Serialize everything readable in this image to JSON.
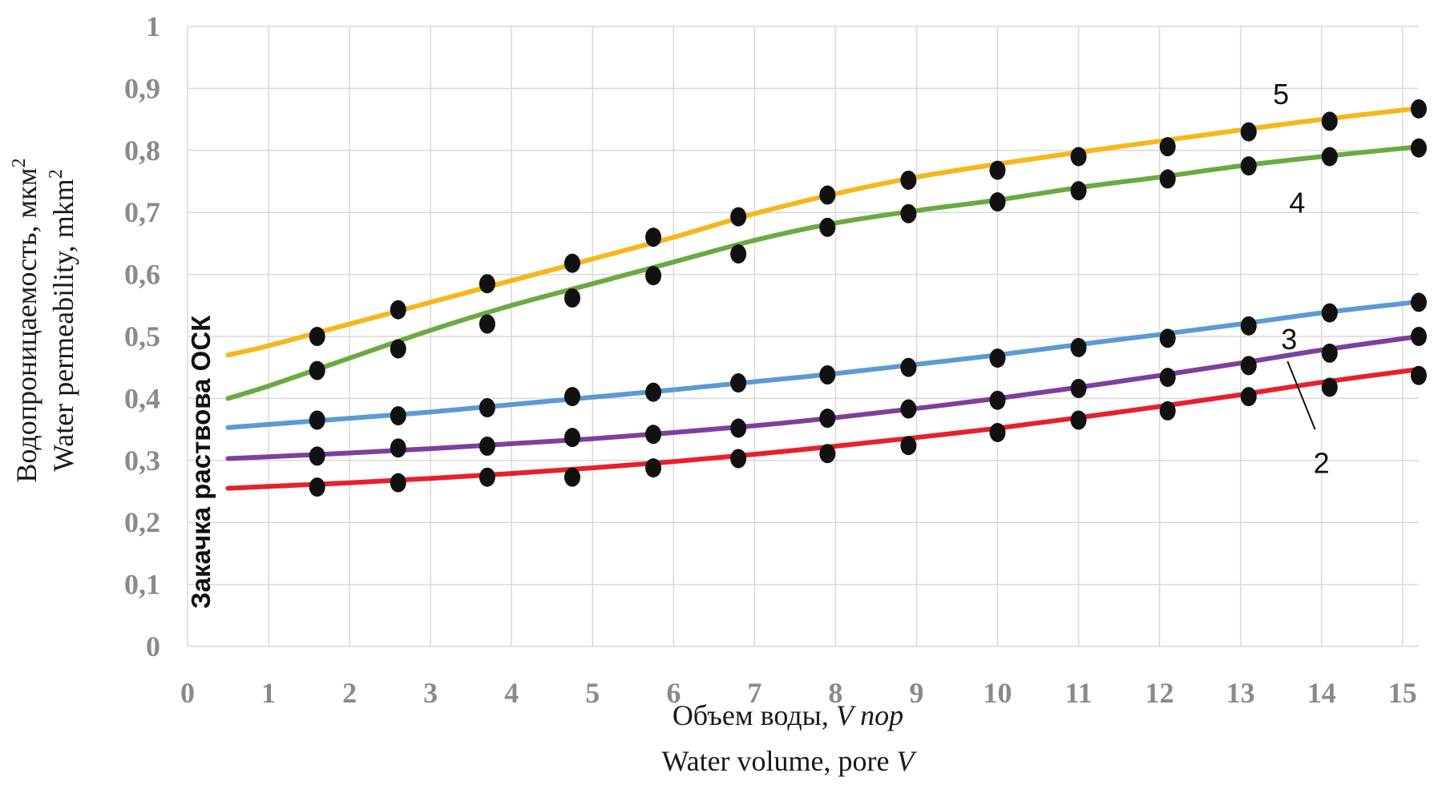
{
  "chart_data": {
    "type": "line",
    "xlabel_lines": [
      "Объем воды, ",
      "Water volume, pore "
    ],
    "xlabel_italic": [
      "V пор",
      "V"
    ],
    "ylabel_lines": [
      "Водопроницаемость, мкм",
      "Water permeability, mkm"
    ],
    "ylabel_superscript": "2",
    "inset_label": "Закачка раствова ОСК",
    "xlim": [
      0,
      15.2
    ],
    "ylim": [
      0,
      1
    ],
    "x_ticks": [
      "0",
      "1",
      "2",
      "3",
      "4",
      "5",
      "6",
      "7",
      "8",
      "9",
      "10",
      "11",
      "12",
      "13",
      "14",
      "15"
    ],
    "y_ticks": [
      "0",
      "0,1",
      "0,2",
      "0,3",
      "0,4",
      "0,5",
      "0,6",
      "0,7",
      "0,8",
      "0,9",
      "1"
    ],
    "grid": true,
    "marker_color": "#111111",
    "series": [
      {
        "name": "5",
        "color": "#f6b61c",
        "label_pos": [
          13.4,
          0.89
        ],
        "line": [
          [
            0.5,
            0.47
          ],
          [
            1,
            0.485
          ],
          [
            2,
            0.52
          ],
          [
            3,
            0.555
          ],
          [
            4,
            0.59
          ],
          [
            5,
            0.625
          ],
          [
            6,
            0.66
          ],
          [
            7,
            0.698
          ],
          [
            8,
            0.73
          ],
          [
            9,
            0.757
          ],
          [
            10,
            0.778
          ],
          [
            11,
            0.797
          ],
          [
            12,
            0.815
          ],
          [
            13,
            0.833
          ],
          [
            14,
            0.85
          ],
          [
            15.2,
            0.868
          ]
        ],
        "points": [
          [
            1.6,
            0.5
          ],
          [
            2.6,
            0.543
          ],
          [
            3.7,
            0.585
          ],
          [
            4.75,
            0.618
          ],
          [
            5.75,
            0.66
          ],
          [
            6.8,
            0.693
          ],
          [
            7.9,
            0.728
          ],
          [
            8.9,
            0.752
          ],
          [
            10,
            0.768
          ],
          [
            11,
            0.79
          ],
          [
            12.1,
            0.806
          ],
          [
            13.1,
            0.83
          ],
          [
            14.1,
            0.847
          ],
          [
            15.2,
            0.867
          ]
        ]
      },
      {
        "name": "4",
        "color": "#6aaa42",
        "label_pos": [
          13.6,
          0.715
        ],
        "line": [
          [
            0.5,
            0.4
          ],
          [
            1,
            0.42
          ],
          [
            2,
            0.465
          ],
          [
            3,
            0.51
          ],
          [
            4,
            0.55
          ],
          [
            5,
            0.585
          ],
          [
            6,
            0.62
          ],
          [
            7,
            0.655
          ],
          [
            8,
            0.683
          ],
          [
            9,
            0.703
          ],
          [
            10,
            0.72
          ],
          [
            11,
            0.74
          ],
          [
            12,
            0.757
          ],
          [
            13,
            0.775
          ],
          [
            14,
            0.79
          ],
          [
            15.2,
            0.806
          ]
        ],
        "points": [
          [
            1.6,
            0.445
          ],
          [
            2.6,
            0.48
          ],
          [
            3.7,
            0.52
          ],
          [
            4.75,
            0.562
          ],
          [
            5.75,
            0.598
          ],
          [
            6.8,
            0.633
          ],
          [
            7.9,
            0.676
          ],
          [
            8.9,
            0.698
          ],
          [
            10,
            0.717
          ],
          [
            11,
            0.735
          ],
          [
            12.1,
            0.754
          ],
          [
            13.1,
            0.775
          ],
          [
            14.1,
            0.79
          ],
          [
            15.2,
            0.804
          ]
        ]
      },
      {
        "name": "3",
        "color": "#5b9bd5",
        "label_pos": [
          13.5,
          0.495
        ],
        "line": [
          [
            0.5,
            0.353
          ],
          [
            1,
            0.358
          ],
          [
            2,
            0.368
          ],
          [
            3,
            0.378
          ],
          [
            4,
            0.39
          ],
          [
            5,
            0.402
          ],
          [
            6,
            0.414
          ],
          [
            7,
            0.427
          ],
          [
            8,
            0.44
          ],
          [
            9,
            0.455
          ],
          [
            10,
            0.47
          ],
          [
            11,
            0.487
          ],
          [
            12,
            0.503
          ],
          [
            13,
            0.52
          ],
          [
            14,
            0.538
          ],
          [
            15.2,
            0.556
          ]
        ],
        "points": [
          [
            1.6,
            0.365
          ],
          [
            2.6,
            0.372
          ],
          [
            3.7,
            0.385
          ],
          [
            4.75,
            0.403
          ],
          [
            5.75,
            0.41
          ],
          [
            6.8,
            0.425
          ],
          [
            7.9,
            0.438
          ],
          [
            8.9,
            0.45
          ],
          [
            10,
            0.465
          ],
          [
            11,
            0.482
          ],
          [
            12.1,
            0.497
          ],
          [
            13.1,
            0.517
          ],
          [
            14.1,
            0.538
          ],
          [
            15.2,
            0.555
          ]
        ]
      },
      {
        "name": "2",
        "color": "#7d3fa0",
        "label_pos": [
          13.9,
          0.295
        ],
        "leader": [
          [
            13.58,
            0.46
          ],
          [
            13.92,
            0.35
          ]
        ],
        "line": [
          [
            0.5,
            0.303
          ],
          [
            1,
            0.306
          ],
          [
            2,
            0.312
          ],
          [
            3,
            0.319
          ],
          [
            4,
            0.327
          ],
          [
            5,
            0.335
          ],
          [
            6,
            0.345
          ],
          [
            7,
            0.356
          ],
          [
            8,
            0.369
          ],
          [
            9,
            0.384
          ],
          [
            10,
            0.4
          ],
          [
            11,
            0.418
          ],
          [
            12,
            0.437
          ],
          [
            13,
            0.457
          ],
          [
            14,
            0.478
          ],
          [
            15.2,
            0.5
          ]
        ],
        "points": [
          [
            1.6,
            0.307
          ],
          [
            2.6,
            0.32
          ],
          [
            3.7,
            0.323
          ],
          [
            4.75,
            0.337
          ],
          [
            5.75,
            0.342
          ],
          [
            6.8,
            0.352
          ],
          [
            7.9,
            0.368
          ],
          [
            8.9,
            0.383
          ],
          [
            10,
            0.397
          ],
          [
            11,
            0.416
          ],
          [
            12.1,
            0.434
          ],
          [
            13.1,
            0.453
          ],
          [
            14.1,
            0.473
          ],
          [
            15.2,
            0.5
          ]
        ]
      },
      {
        "color": "#e8202a",
        "line": [
          [
            0.5,
            0.255
          ],
          [
            1,
            0.258
          ],
          [
            2,
            0.264
          ],
          [
            3,
            0.271
          ],
          [
            4,
            0.279
          ],
          [
            5,
            0.288
          ],
          [
            6,
            0.298
          ],
          [
            7,
            0.31
          ],
          [
            8,
            0.323
          ],
          [
            9,
            0.337
          ],
          [
            10,
            0.352
          ],
          [
            11,
            0.369
          ],
          [
            12,
            0.387
          ],
          [
            13,
            0.406
          ],
          [
            14,
            0.426
          ],
          [
            15.2,
            0.447
          ]
        ],
        "points": [
          [
            1.6,
            0.257
          ],
          [
            2.6,
            0.264
          ],
          [
            3.7,
            0.273
          ],
          [
            4.75,
            0.273
          ],
          [
            5.75,
            0.288
          ],
          [
            6.8,
            0.303
          ],
          [
            7.9,
            0.311
          ],
          [
            8.9,
            0.324
          ],
          [
            10,
            0.345
          ],
          [
            11,
            0.365
          ],
          [
            12.1,
            0.38
          ],
          [
            13.1,
            0.403
          ],
          [
            14.1,
            0.418
          ],
          [
            15.2,
            0.437
          ]
        ]
      }
    ]
  }
}
